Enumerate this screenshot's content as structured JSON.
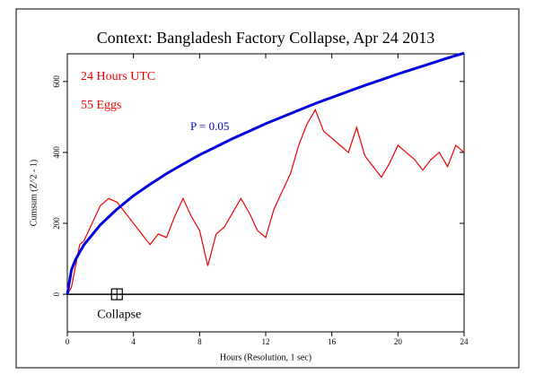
{
  "chart_data": {
    "type": "line",
    "title": "Context: Bangladesh Factory Collapse, Apr 24 2013",
    "xlabel": "Hours (Resolution, 1 sec)",
    "ylabel": "Cumsum (Z^2 - 1)",
    "xlim": [
      0,
      24
    ],
    "ylim": [
      -106,
      678
    ],
    "xticks": [
      0,
      4,
      8,
      12,
      16,
      20,
      24
    ],
    "yticks": [
      0,
      200,
      400,
      600
    ],
    "zero_line": true,
    "annotations": [
      {
        "text": "24 Hours UTC",
        "color": "#ee0000"
      },
      {
        "text": "55 Eggs",
        "color": "#ee0000"
      },
      {
        "text": "P = 0.05",
        "color": "#0000cc"
      },
      {
        "text": "Collapse",
        "color": "#000000",
        "x": 3
      }
    ],
    "series": [
      {
        "name": "Cumsum",
        "color": "#ee0000",
        "x": [
          0,
          0.25,
          0.5,
          0.75,
          1,
          1.5,
          2,
          2.5,
          3,
          3.5,
          4,
          4.5,
          5,
          5.5,
          6,
          6.5,
          7,
          7.5,
          8,
          8.5,
          9,
          9.5,
          10,
          10.5,
          11,
          11.5,
          12,
          12.5,
          13,
          13.5,
          14,
          14.5,
          15,
          15.5,
          16,
          16.5,
          17,
          17.5,
          18,
          18.5,
          19,
          19.5,
          20,
          20.5,
          21,
          21.5,
          22,
          22.5,
          23,
          23.5,
          24
        ],
        "values": [
          0,
          20,
          80,
          140,
          150,
          200,
          250,
          270,
          260,
          230,
          200,
          170,
          140,
          170,
          160,
          220,
          270,
          220,
          180,
          80,
          170,
          190,
          230,
          270,
          230,
          180,
          160,
          240,
          290,
          340,
          420,
          480,
          520,
          460,
          440,
          420,
          400,
          470,
          390,
          360,
          330,
          370,
          420,
          400,
          380,
          350,
          380,
          400,
          360,
          420,
          400
        ]
      },
      {
        "name": "P = 0.05",
        "color": "#0000dd",
        "x": [
          0,
          0.25,
          0.5,
          1,
          2,
          3,
          4,
          5,
          6,
          7,
          8,
          9,
          10,
          11,
          12,
          13,
          14,
          15,
          16,
          17,
          18,
          19,
          20,
          21,
          22,
          23,
          24
        ],
        "values": [
          0,
          69,
          98,
          139,
          196,
          240,
          278,
          310,
          340,
          367,
          393,
          416,
          439,
          460,
          481,
          500,
          519,
          538,
          555,
          572,
          589,
          605,
          621,
          636,
          651,
          666,
          680
        ]
      }
    ]
  }
}
